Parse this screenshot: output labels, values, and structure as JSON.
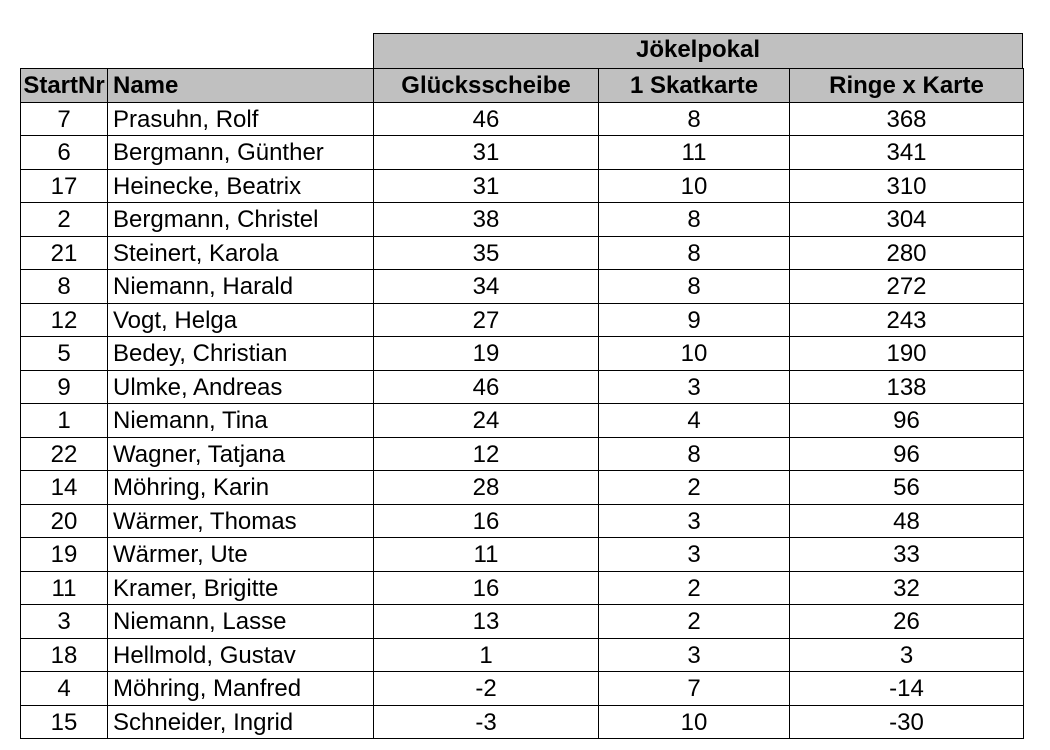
{
  "table": {
    "group_header": "Jökelpokal",
    "columns": [
      "StartNr",
      "Name",
      "Glücksscheibe",
      "1 Skatkarte",
      "Ringe x Karte"
    ],
    "rows": [
      [
        7,
        "Prasuhn, Rolf",
        46,
        8,
        368
      ],
      [
        6,
        "Bergmann, Günther",
        31,
        11,
        341
      ],
      [
        17,
        "Heinecke, Beatrix",
        31,
        10,
        310
      ],
      [
        2,
        "Bergmann, Christel",
        38,
        8,
        304
      ],
      [
        21,
        "Steinert, Karola",
        35,
        8,
        280
      ],
      [
        8,
        "Niemann, Harald",
        34,
        8,
        272
      ],
      [
        12,
        "Vogt, Helga",
        27,
        9,
        243
      ],
      [
        5,
        "Bedey, Christian",
        19,
        10,
        190
      ],
      [
        9,
        "Ulmke, Andreas",
        46,
        3,
        138
      ],
      [
        1,
        "Niemann, Tina",
        24,
        4,
        96
      ],
      [
        22,
        "Wagner, Tatjana",
        12,
        8,
        96
      ],
      [
        14,
        "Möhring, Karin",
        28,
        2,
        56
      ],
      [
        20,
        "Wärmer, Thomas",
        16,
        3,
        48
      ],
      [
        19,
        "Wärmer, Ute",
        11,
        3,
        33
      ],
      [
        11,
        "Kramer, Brigitte",
        16,
        2,
        32
      ],
      [
        3,
        "Niemann, Lasse",
        13,
        2,
        26
      ],
      [
        18,
        "Hellmold, Gustav",
        1,
        3,
        3
      ],
      [
        4,
        "Möhring, Manfred",
        -2,
        7,
        -14
      ],
      [
        15,
        "Schneider, Ingrid",
        -3,
        10,
        -30
      ]
    ]
  }
}
